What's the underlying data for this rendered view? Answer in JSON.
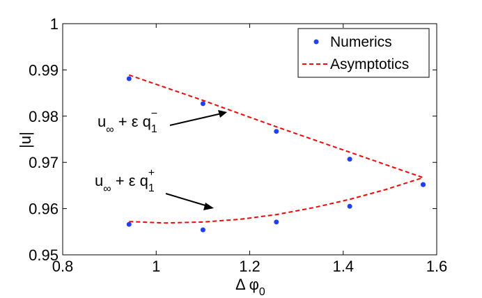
{
  "chart_data": {
    "type": "scatter",
    "title": "",
    "xlabel": {
      "main": "Δ φ",
      "sub": "0"
    },
    "ylabel": "|u|",
    "xlim": [
      0.8,
      1.6
    ],
    "ylim": [
      0.95,
      1.0
    ],
    "xticks": [
      "0.8",
      "1",
      "1.2",
      "1.4",
      "1.6"
    ],
    "yticks": [
      "0.95",
      "0.96",
      "0.97",
      "0.98",
      "0.99",
      "1"
    ],
    "grid": false,
    "legend_position": "top-right",
    "colors": {
      "numerics": "#1f3fff",
      "asymptotics": "#ff0000"
    },
    "series": [
      {
        "name": "Numerics",
        "style": "markers",
        "points": [
          {
            "x": 0.942,
            "y": 0.9881
          },
          {
            "x": 1.1,
            "y": 0.9827
          },
          {
            "x": 1.257,
            "y": 0.9767
          },
          {
            "x": 1.414,
            "y": 0.9707
          },
          {
            "x": 1.571,
            "y": 0.9652
          },
          {
            "x": 0.942,
            "y": 0.9566
          },
          {
            "x": 1.1,
            "y": 0.9554
          },
          {
            "x": 1.257,
            "y": 0.9571
          },
          {
            "x": 1.414,
            "y": 0.9605
          },
          {
            "x": 1.571,
            "y": 0.9652
          }
        ]
      },
      {
        "name": "Asymptotics",
        "style": "dashed",
        "branches": [
          {
            "x": [
              0.942,
              1.1,
              1.257,
              1.414,
              1.571
            ],
            "y": [
              0.9889,
              0.9834,
              0.9777,
              0.9722,
              0.9667
            ]
          },
          {
            "x": [
              0.942,
              1.02,
              1.1,
              1.18,
              1.257,
              1.336,
              1.414,
              1.49,
              1.571
            ],
            "y": [
              0.9572,
              0.9569,
              0.9571,
              0.9577,
              0.9587,
              0.9602,
              0.962,
              0.9641,
              0.9667
            ]
          }
        ]
      }
    ],
    "annotations": [
      {
        "text_main": "u",
        "text_sub": "∞",
        "text_mid": " + ε q",
        "text_sub2": "1",
        "text_sup": "−",
        "arrow_to": {
          "x": 1.16,
          "y": 0.9812
        }
      },
      {
        "text_main": "u",
        "text_sub": "∞",
        "text_mid": " + ε q",
        "text_sub2": "1",
        "text_sup": "+",
        "arrow_to": {
          "x": 1.12,
          "y": 0.9601
        }
      }
    ]
  }
}
